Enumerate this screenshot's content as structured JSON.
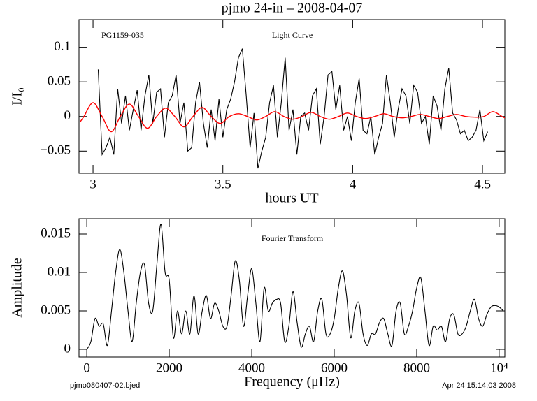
{
  "chart_data": [
    {
      "type": "line",
      "title": "pjmo 24-in – 2008-04-07",
      "xlabel": "hours UT",
      "ylabel": "I/I₀",
      "annotations": [
        "PG1159-035",
        "Light Curve"
      ],
      "xlim": [
        2.946,
        4.586
      ],
      "ylim": [
        -0.082,
        0.14
      ],
      "xticks": [
        3,
        3.5,
        4,
        4.5
      ],
      "yticks": [
        {
          "value": -0.05,
          "label": "−0.05"
        },
        0,
        0.05,
        0.1
      ],
      "series": [
        {
          "color": "#000000",
          "x": [
            3.02,
            3.035,
            3.05,
            3.065,
            3.08,
            3.095,
            3.11,
            3.125,
            3.14,
            3.155,
            3.17,
            3.185,
            3.2,
            3.215,
            3.23,
            3.245,
            3.26,
            3.275,
            3.29,
            3.305,
            3.32,
            3.335,
            3.35,
            3.365,
            3.38,
            3.395,
            3.41,
            3.425,
            3.44,
            3.455,
            3.47,
            3.485,
            3.5,
            3.515,
            3.53,
            3.545,
            3.56,
            3.575,
            3.59,
            3.605,
            3.62,
            3.635,
            3.65,
            3.665,
            3.68,
            3.695,
            3.71,
            3.725,
            3.74,
            3.755,
            3.77,
            3.785,
            3.8,
            3.815,
            3.83,
            3.845,
            3.86,
            3.875,
            3.89,
            3.905,
            3.92,
            3.935,
            3.95,
            3.965,
            3.98,
            3.995,
            4.01,
            4.025,
            4.04,
            4.055,
            4.07,
            4.085,
            4.1,
            4.115,
            4.13,
            4.145,
            4.16,
            4.175,
            4.19,
            4.205,
            4.22,
            4.235,
            4.25,
            4.265,
            4.28,
            4.295,
            4.31,
            4.325,
            4.34,
            4.355,
            4.37,
            4.385,
            4.4,
            4.415,
            4.43,
            4.445,
            4.46,
            4.475,
            4.49,
            4.505,
            4.52
          ],
          "values": [
            0.068,
            -0.055,
            -0.045,
            -0.03,
            -0.055,
            0.04,
            -0.01,
            0.03,
            -0.02,
            0.01,
            0.038,
            -0.02,
            0.03,
            0.06,
            -0.01,
            0.035,
            0.04,
            -0.03,
            0.02,
            0.03,
            0.06,
            -0.01,
            0.02,
            -0.05,
            -0.045,
            0.02,
            0.05,
            -0.01,
            -0.045,
            0.01,
            -0.035,
            0.025,
            -0.03,
            0.01,
            0.025,
            0.05,
            0.085,
            0.098,
            0.03,
            -0.045,
            0.005,
            -0.075,
            -0.05,
            -0.03,
            0.02,
            0.045,
            -0.03,
            0.02,
            0.085,
            -0.02,
            0.01,
            -0.055,
            0,
            0.005,
            -0.02,
            0.03,
            0.04,
            -0.04,
            0,
            0.06,
            0.065,
            0.01,
            0.045,
            -0.02,
            0,
            -0.035,
            0.02,
            0.055,
            -0.02,
            -0.025,
            0,
            -0.055,
            -0.03,
            -0.01,
            0.06,
            0.02,
            -0.03,
            0.01,
            0.04,
            0.03,
            -0.01,
            0.045,
            0.035,
            -0.01,
            0,
            -0.04,
            0.03,
            0.015,
            -0.02,
            0.04,
            0.07,
            0.005,
            -0.005,
            -0.025,
            -0.02,
            -0.035,
            -0.03,
            -0.02,
            0.01,
            -0.035,
            -0.022
          ]
        },
        {
          "color": "#ff0000",
          "smooth": true,
          "x": [
            2.95,
            2.965,
            3.0,
            3.035,
            3.07,
            3.105,
            3.14,
            3.175,
            3.21,
            3.245,
            3.28,
            3.315,
            3.35,
            3.385,
            3.42,
            3.455,
            3.49,
            3.525,
            3.56,
            3.595,
            3.63,
            3.665,
            3.7,
            3.735,
            3.77,
            3.805,
            3.84,
            3.875,
            3.91,
            3.945,
            3.98,
            4.015,
            4.05,
            4.085,
            4.12,
            4.155,
            4.19,
            4.225,
            4.26,
            4.295,
            4.33,
            4.365,
            4.4,
            4.435,
            4.47,
            4.505,
            4.54,
            4.575,
            4.586
          ],
          "values": [
            -0.008,
            0,
            0.02,
            0,
            -0.022,
            0,
            0.018,
            0,
            -0.017,
            0,
            0.012,
            0,
            -0.015,
            0,
            0.013,
            0,
            -0.01,
            0,
            0.004,
            0,
            -0.005,
            0,
            0.007,
            0,
            -0.004,
            0,
            0.006,
            0,
            -0.004,
            0,
            0.005,
            0,
            -0.003,
            0,
            0.004,
            0,
            -0.002,
            0,
            0.003,
            0,
            -0.003,
            0,
            0.003,
            0,
            -0.001,
            0,
            0.007,
            0,
            -0.002
          ]
        }
      ]
    },
    {
      "type": "line",
      "xlabel": "Frequency (μHz)",
      "ylabel": "Amplitude",
      "annotations": [
        "Fourier Transform"
      ],
      "xlim": [
        -188,
        10137
      ],
      "ylim": [
        -0.001,
        0.017
      ],
      "xticks": [
        0,
        2000,
        4000,
        6000,
        8000,
        {
          "value": 10000,
          "label": "10⁴"
        }
      ],
      "yticks": [
        0,
        0.005,
        0.01,
        0.015
      ],
      "series": [
        {
          "color": "#000000",
          "smooth": true,
          "x": [
            0,
            100,
            200,
            300,
            400,
            500,
            600,
            700,
            800,
            900,
            1000,
            1100,
            1200,
            1300,
            1400,
            1500,
            1600,
            1700,
            1800,
            1900,
            2000,
            2100,
            2200,
            2300,
            2400,
            2500,
            2600,
            2700,
            2800,
            2900,
            3000,
            3100,
            3200,
            3300,
            3400,
            3500,
            3600,
            3700,
            3800,
            3900,
            4000,
            4100,
            4200,
            4300,
            4400,
            4500,
            4600,
            4700,
            4800,
            4900,
            5000,
            5100,
            5200,
            5300,
            5400,
            5500,
            5600,
            5700,
            5800,
            5900,
            6000,
            6100,
            6200,
            6300,
            6400,
            6500,
            6600,
            6700,
            6800,
            6900,
            7000,
            7100,
            7200,
            7300,
            7400,
            7500,
            7600,
            7700,
            7800,
            7900,
            8000,
            8100,
            8200,
            8300,
            8400,
            8500,
            8600,
            8700,
            8800,
            8900,
            9000,
            9100,
            9200,
            9300,
            9400,
            9500,
            9600,
            9700,
            9800,
            9900,
            10000,
            10100
          ],
          "values": [
            0,
            0.001,
            0.004,
            0.003,
            0.0033,
            0.0005,
            0.005,
            0.01,
            0.013,
            0.01,
            0.005,
            0.001,
            0.006,
            0.01,
            0.011,
            0.006,
            0.005,
            0.011,
            0.0163,
            0.01,
            0.009,
            0.0015,
            0.005,
            0.002,
            0.005,
            0.002,
            0.007,
            0.002,
            0.005,
            0.007,
            0.004,
            0.006,
            0.005,
            0.003,
            0.003,
            0.007,
            0.0115,
            0.009,
            0.003,
            0.007,
            0.0105,
            0.006,
            0.001,
            0.008,
            0.005,
            0.006,
            0.0065,
            0.006,
            0.001,
            0.003,
            0.0075,
            0.0035,
            0.0003,
            0.002,
            0.003,
            0.001,
            0.005,
            0.0065,
            0.002,
            0.002,
            0.004,
            0.008,
            0.0102,
            0.007,
            0.0015,
            0.005,
            0.006,
            0.002,
            0.0005,
            0.002,
            0.002,
            0.0035,
            0.004,
            0.002,
            0.0005,
            0.005,
            0.006,
            0.002,
            0.003,
            0.005,
            0.008,
            0.0093,
            0.005,
            0.0005,
            0.003,
            0.0025,
            0.003,
            0.001,
            0.004,
            0.0045,
            0.002,
            0.002,
            0.003,
            0.005,
            0.0065,
            0.004,
            0.003,
            0.0045,
            0.0055,
            0.0057,
            0.0055,
            0.005
          ]
        }
      ]
    }
  ],
  "footer_left": "pjmo080407-02.bjed",
  "footer_right": "Apr 24 15:14:03 2008"
}
